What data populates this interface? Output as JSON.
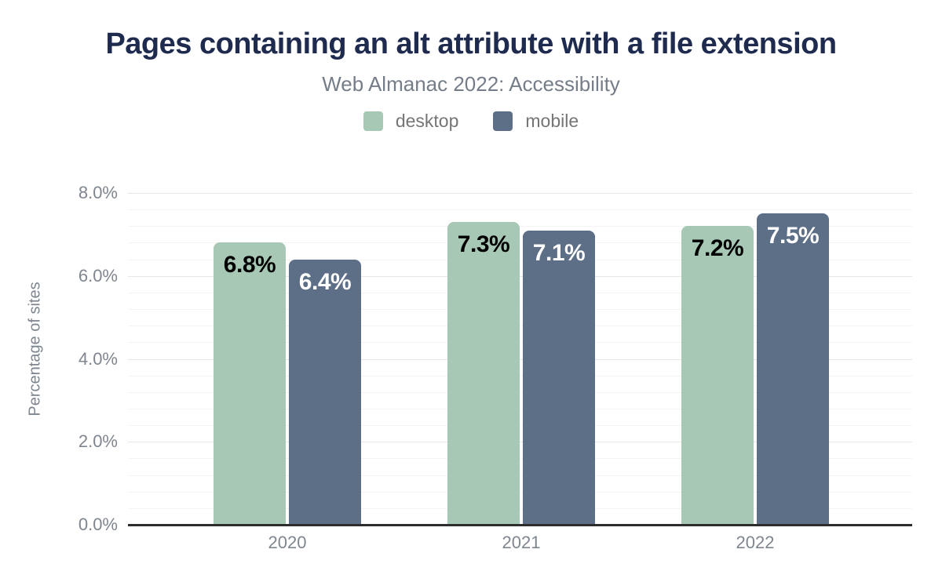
{
  "header": {
    "title": "Pages containing an alt attribute with a file extension",
    "subtitle": "Web Almanac 2022: Accessibility"
  },
  "chart_data": {
    "type": "bar",
    "title": "Pages containing an alt attribute with a file extension",
    "subtitle": "Web Almanac 2022: Accessibility",
    "categories": [
      "2020",
      "2021",
      "2022"
    ],
    "series": [
      {
        "name": "desktop",
        "color": "#a6c8b5",
        "label_color": "#000000",
        "values": [
          6.8,
          7.3,
          7.2
        ],
        "value_labels": [
          "6.8%",
          "7.3%",
          "7.2%"
        ]
      },
      {
        "name": "mobile",
        "color": "#5d6e87",
        "label_color": "#ffffff",
        "values": [
          6.4,
          7.1,
          7.5
        ],
        "value_labels": [
          "6.4%",
          "7.1%",
          "7.5%"
        ]
      }
    ],
    "xlabel": "",
    "ylabel": "Percentage of sites",
    "ylim": [
      0,
      8
    ],
    "yticks": [
      "0.0%",
      "2.0%",
      "4.0%",
      "6.0%",
      "8.0%"
    ],
    "ytick_values": [
      0,
      2,
      4,
      6,
      8
    ],
    "grid": {
      "on": true,
      "major_interval": 2,
      "minor_interval": 0.4
    },
    "legend_position": "top"
  },
  "colors": {
    "title": "#1e2b4f",
    "subtitle": "#747d88",
    "axis_text": "#7f8690",
    "axis_line": "#2d2d2d",
    "grid_major": "#e7e7e7",
    "grid_minor": "#f4f4f4",
    "background": "#ffffff"
  }
}
